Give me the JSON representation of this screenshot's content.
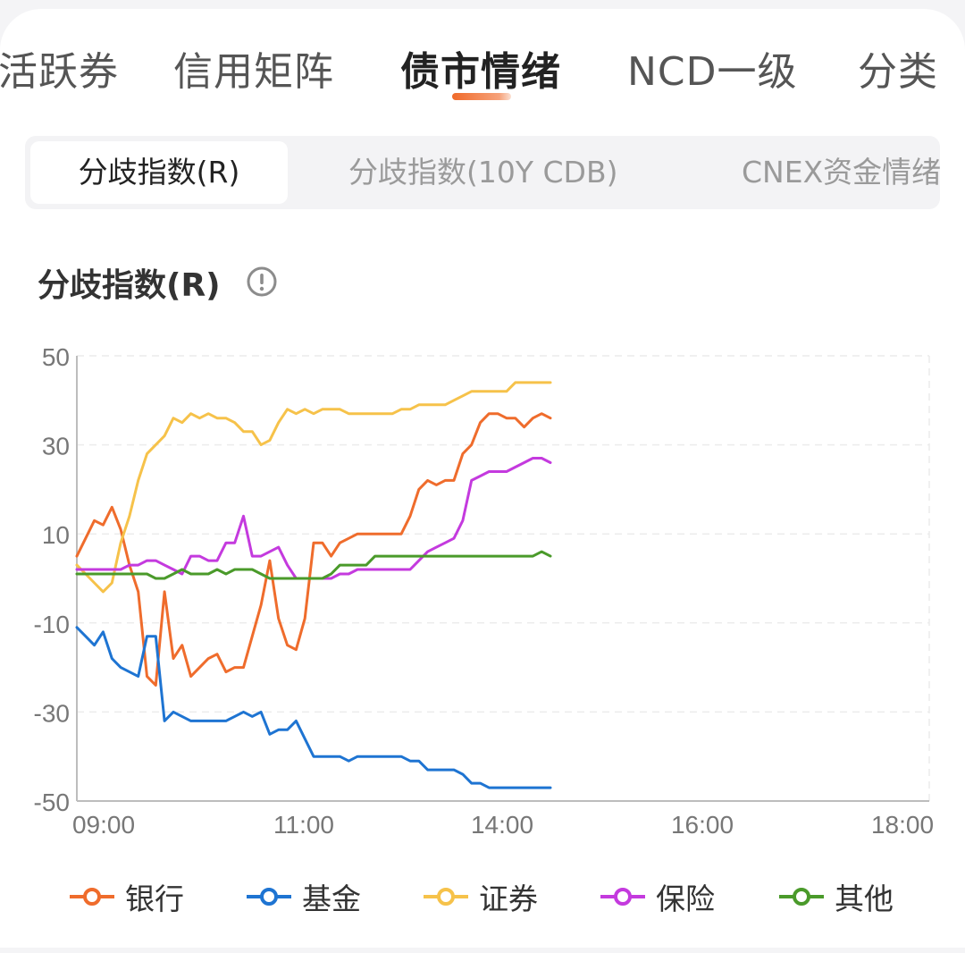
{
  "top_tabs": [
    {
      "label": "活跃券"
    },
    {
      "label": "信用矩阵"
    },
    {
      "label": "债市情绪"
    },
    {
      "label": "NCD一级"
    },
    {
      "label": "分类"
    }
  ],
  "sub_tabs": [
    {
      "label": "分歧指数(R)"
    },
    {
      "label": "分歧指数(10Y CDB)"
    },
    {
      "label": "CNEX资金情绪"
    }
  ],
  "chart_title": "分歧指数(R)",
  "info_icon": "info-circle-icon",
  "chart_data": {
    "type": "line",
    "ylim": [
      -50,
      50
    ],
    "y_ticks": [
      50,
      30,
      10,
      -10,
      -30,
      -50
    ],
    "x_ticks": [
      "09:00",
      "11:00",
      "14:00",
      "16:00",
      "18:00"
    ],
    "grid": true,
    "legend": "bottom",
    "series": [
      {
        "name": "银行",
        "color": "#ef6c2c",
        "values": [
          5,
          9,
          13,
          12,
          16,
          11,
          3,
          -3,
          -22,
          -24,
          -3,
          -18,
          -15,
          -22,
          -20,
          -18,
          -17,
          -21,
          -20,
          -20,
          -13,
          -6,
          4,
          -9,
          -15,
          -16,
          -9,
          8,
          8,
          5,
          8,
          9,
          10,
          10,
          10,
          10,
          10,
          10,
          14,
          20,
          22,
          21,
          22,
          22,
          28,
          30,
          35,
          37,
          37,
          36,
          36,
          34,
          36,
          37,
          36
        ]
      },
      {
        "name": "基金",
        "color": "#1e74d2",
        "values": [
          -11,
          -13,
          -15,
          -12,
          -18,
          -20,
          -21,
          -22,
          -13,
          -13,
          -32,
          -30,
          -31,
          -32,
          -32,
          -32,
          -32,
          -32,
          -31,
          -30,
          -31,
          -30,
          -35,
          -34,
          -34,
          -32,
          -36,
          -40,
          -40,
          -40,
          -40,
          -41,
          -40,
          -40,
          -40,
          -40,
          -40,
          -40,
          -41,
          -41,
          -43,
          -43,
          -43,
          -43,
          -44,
          -46,
          -46,
          -47,
          -47,
          -47,
          -47,
          -47,
          -47,
          -47,
          -47
        ]
      },
      {
        "name": "证券",
        "color": "#f6c24a",
        "values": [
          3,
          1,
          -1,
          -3,
          -1,
          8,
          14,
          22,
          28,
          30,
          32,
          36,
          35,
          37,
          36,
          37,
          36,
          36,
          35,
          33,
          33,
          30,
          31,
          35,
          38,
          37,
          38,
          37,
          38,
          38,
          38,
          37,
          37,
          37,
          37,
          37,
          37,
          38,
          38,
          39,
          39,
          39,
          39,
          40,
          41,
          42,
          42,
          42,
          42,
          42,
          44,
          44,
          44,
          44,
          44
        ]
      },
      {
        "name": "保险",
        "color": "#c43ade",
        "values": [
          2,
          2,
          2,
          2,
          2,
          2,
          3,
          3,
          4,
          4,
          3,
          2,
          1,
          5,
          5,
          4,
          4,
          8,
          8,
          14,
          5,
          5,
          6,
          7,
          3,
          0,
          0,
          0,
          0,
          0,
          1,
          1,
          2,
          2,
          2,
          2,
          2,
          2,
          2,
          4,
          6,
          7,
          8,
          9,
          13,
          22,
          23,
          24,
          24,
          24,
          25,
          26,
          27,
          27,
          26
        ]
      },
      {
        "name": "其他",
        "color": "#4a9a2a",
        "values": [
          1,
          1,
          1,
          1,
          1,
          1,
          1,
          1,
          1,
          0,
          0,
          1,
          2,
          1,
          1,
          1,
          2,
          1,
          2,
          2,
          2,
          1,
          0,
          0,
          0,
          0,
          0,
          0,
          0,
          1,
          3,
          3,
          3,
          3,
          5,
          5,
          5,
          5,
          5,
          5,
          5,
          5,
          5,
          5,
          5,
          5,
          5,
          5,
          5,
          5,
          5,
          5,
          5,
          6,
          5
        ]
      }
    ]
  }
}
